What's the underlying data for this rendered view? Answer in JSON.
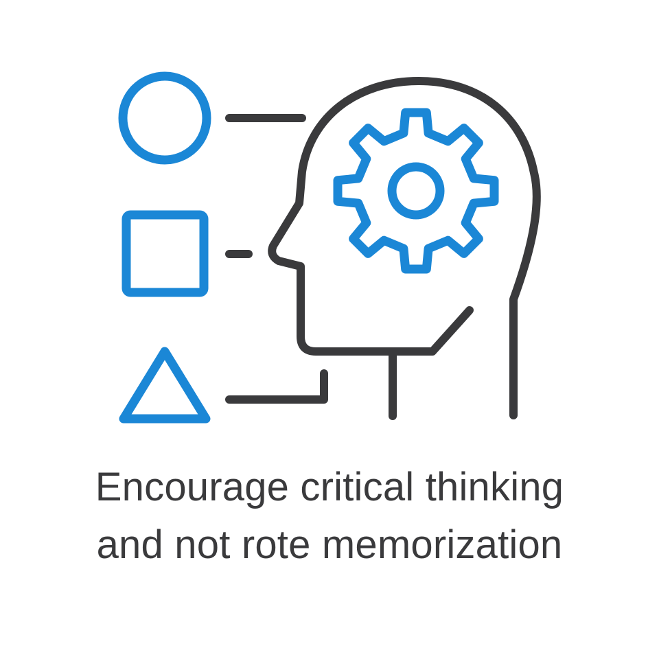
{
  "caption": {
    "line1": "Encourage critical thinking",
    "line2": "and not rote memorization"
  },
  "icons": {
    "circle": "circle-shape-icon",
    "square": "square-shape-icon",
    "triangle": "triangle-shape-icon",
    "head": "human-head-profile-icon",
    "gear": "gear-icon"
  },
  "colors": {
    "accent": "#1b87d6",
    "outline": "#3a3a3c",
    "background": "#ffffff"
  }
}
